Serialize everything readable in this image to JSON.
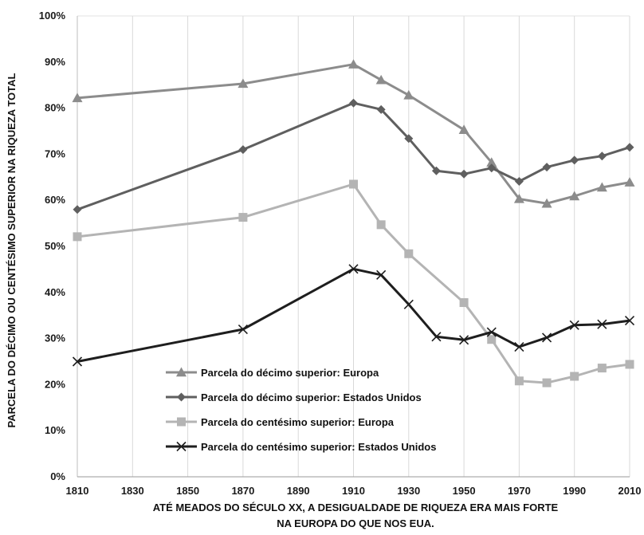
{
  "chart_data": {
    "type": "line",
    "x": [
      1810,
      1870,
      1910,
      1920,
      1930,
      1940,
      1950,
      1960,
      1970,
      1980,
      1990,
      2000,
      2010
    ],
    "xticks": [
      "1810",
      "1830",
      "1850",
      "1870",
      "1890",
      "1910",
      "1930",
      "1950",
      "1970",
      "1990",
      "2010"
    ],
    "yticks": [
      "0%",
      "10%",
      "20%",
      "30%",
      "40%",
      "50%",
      "60%",
      "70%",
      "80%",
      "90%",
      "100%"
    ],
    "xlim": [
      1810,
      2010
    ],
    "ylim": [
      0,
      100
    ],
    "ylabel": "PARCELA DO DÉCIMO OU CENTÉSIMO SUPERIOR NA RIQUEZA TOTAL",
    "xlabel_line1": "ATÉ MEADOS DO SÉCULO XX, A DESIGUALDADE DE RIQUEZA ERA MAIS FORTE",
    "xlabel_line2": "NA EUROPA DO QUE NOS EUA.",
    "grid": "vertical",
    "legend_position": "bottom-left",
    "series": [
      {
        "name": "Parcela do décimo superior: Europa",
        "marker": "triangle",
        "color": "#8c8c8c",
        "points": [
          [
            1810,
            82.2
          ],
          [
            1870,
            85.3
          ],
          [
            1910,
            89.5
          ],
          [
            1920,
            86.1
          ],
          [
            1930,
            82.8
          ],
          [
            1950,
            75.3
          ],
          [
            1960,
            68.2
          ],
          [
            1970,
            60.3
          ],
          [
            1980,
            59.3
          ],
          [
            1990,
            60.9
          ],
          [
            2000,
            62.8
          ],
          [
            2010,
            63.9
          ]
        ]
      },
      {
        "name": "Parcela do décimo superior: Estados Unidos",
        "marker": "diamond",
        "color": "#5f5f5f",
        "points": [
          [
            1810,
            58.0
          ],
          [
            1870,
            71.0
          ],
          [
            1910,
            81.1
          ],
          [
            1920,
            79.7
          ],
          [
            1930,
            73.4
          ],
          [
            1940,
            66.4
          ],
          [
            1950,
            65.7
          ],
          [
            1960,
            67.0
          ],
          [
            1970,
            64.1
          ],
          [
            1980,
            67.2
          ],
          [
            1990,
            68.7
          ],
          [
            2000,
            69.6
          ],
          [
            2010,
            71.5
          ]
        ]
      },
      {
        "name": "Parcela do centésimo superior: Europa",
        "marker": "square",
        "color": "#b4b4b4",
        "points": [
          [
            1810,
            52.1
          ],
          [
            1870,
            56.3
          ],
          [
            1910,
            63.5
          ],
          [
            1920,
            54.7
          ],
          [
            1930,
            48.4
          ],
          [
            1950,
            37.8
          ],
          [
            1960,
            29.8
          ],
          [
            1970,
            20.8
          ],
          [
            1980,
            20.4
          ],
          [
            1990,
            21.8
          ],
          [
            2000,
            23.6
          ],
          [
            2010,
            24.4
          ]
        ]
      },
      {
        "name": "Parcela do centésimo superior: Estados Unidos",
        "marker": "x",
        "color": "#1e1e1e",
        "points": [
          [
            1810,
            25.0
          ],
          [
            1870,
            32.0
          ],
          [
            1910,
            45.1
          ],
          [
            1920,
            43.8
          ],
          [
            1930,
            37.4
          ],
          [
            1940,
            30.4
          ],
          [
            1950,
            29.7
          ],
          [
            1960,
            31.4
          ],
          [
            1970,
            28.2
          ],
          [
            1980,
            30.2
          ],
          [
            1990,
            32.9
          ],
          [
            2000,
            33.1
          ],
          [
            2010,
            33.9
          ]
        ]
      }
    ]
  }
}
